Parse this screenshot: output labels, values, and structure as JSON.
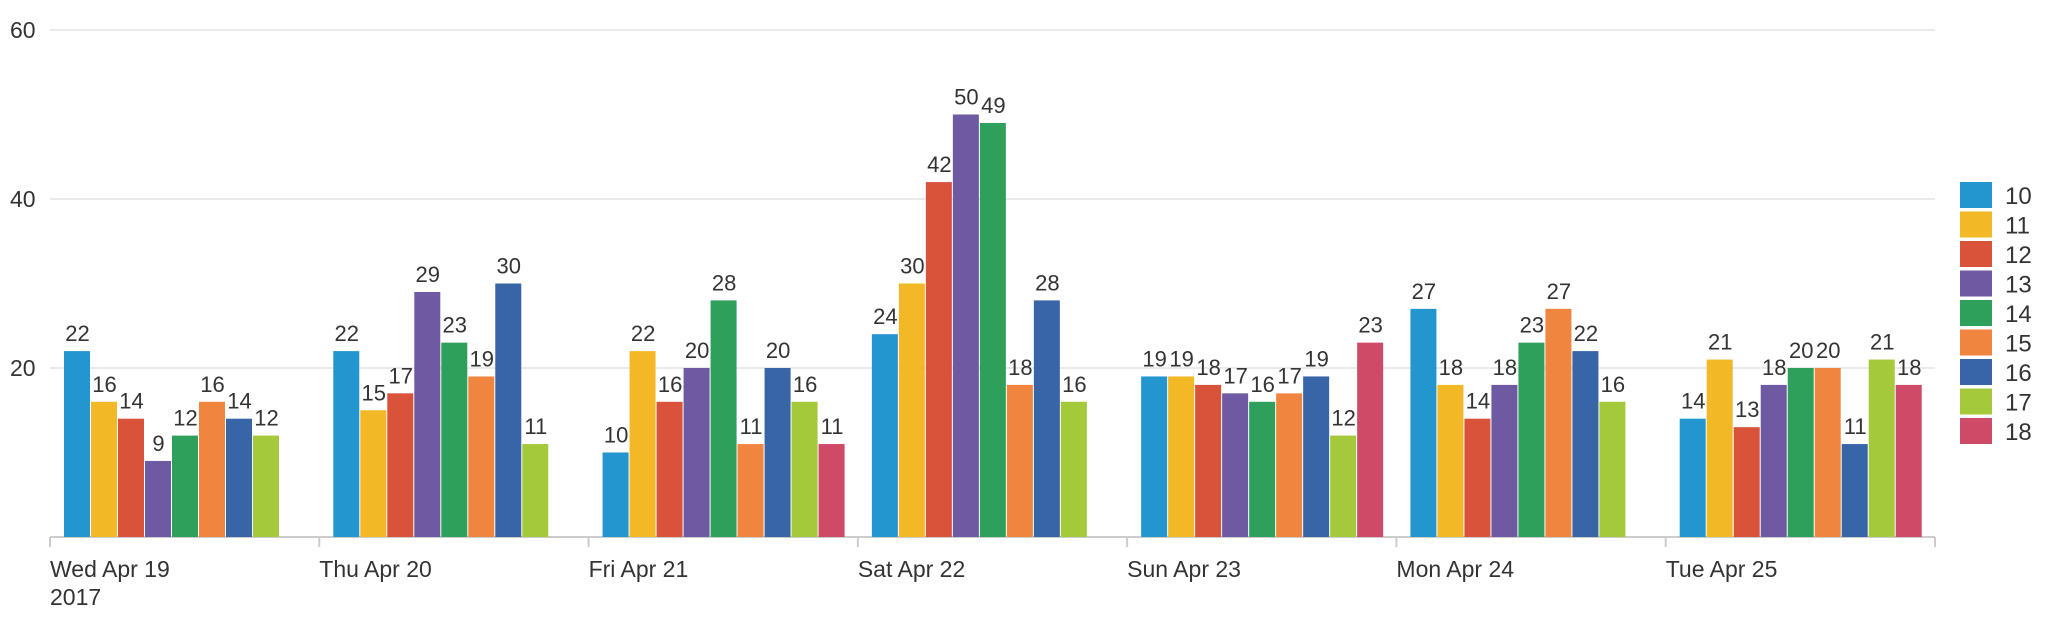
{
  "chart_data": {
    "type": "bar",
    "title": "",
    "xlabel": "",
    "ylabel": "",
    "ylim": [
      0,
      60
    ],
    "yticks": [
      "20",
      "40",
      "60"
    ],
    "categories": [
      {
        "label": "Wed Apr 19",
        "sublabel": "2017"
      },
      {
        "label": "Thu Apr 20",
        "sublabel": ""
      },
      {
        "label": "Fri Apr 21",
        "sublabel": ""
      },
      {
        "label": "Sat Apr 22",
        "sublabel": ""
      },
      {
        "label": "Sun Apr 23",
        "sublabel": ""
      },
      {
        "label": "Mon Apr 24",
        "sublabel": ""
      },
      {
        "label": "Tue Apr 25",
        "sublabel": ""
      }
    ],
    "legend_position": "right",
    "grid": true,
    "series": [
      {
        "name": "10",
        "color": "#2396cf",
        "values": [
          22,
          22,
          10,
          24,
          19,
          27,
          14
        ]
      },
      {
        "name": "11",
        "color": "#f2b826",
        "values": [
          16,
          15,
          22,
          30,
          19,
          18,
          21
        ]
      },
      {
        "name": "12",
        "color": "#d9523a",
        "values": [
          14,
          17,
          16,
          42,
          18,
          14,
          13
        ]
      },
      {
        "name": "13",
        "color": "#6e5aa2",
        "values": [
          9,
          29,
          20,
          50,
          17,
          18,
          18
        ]
      },
      {
        "name": "14",
        "color": "#2ea05c",
        "values": [
          12,
          23,
          28,
          49,
          16,
          23,
          20
        ]
      },
      {
        "name": "15",
        "color": "#ef853f",
        "values": [
          16,
          19,
          11,
          18,
          17,
          27,
          20
        ]
      },
      {
        "name": "16",
        "color": "#3865a6",
        "values": [
          14,
          30,
          20,
          28,
          19,
          22,
          11
        ]
      },
      {
        "name": "17",
        "color": "#a4c93b",
        "values": [
          12,
          11,
          16,
          16,
          12,
          16,
          21
        ]
      },
      {
        "name": "18",
        "color": "#cf4a66",
        "values": [
          null,
          null,
          11,
          null,
          23,
          null,
          18
        ]
      }
    ]
  }
}
